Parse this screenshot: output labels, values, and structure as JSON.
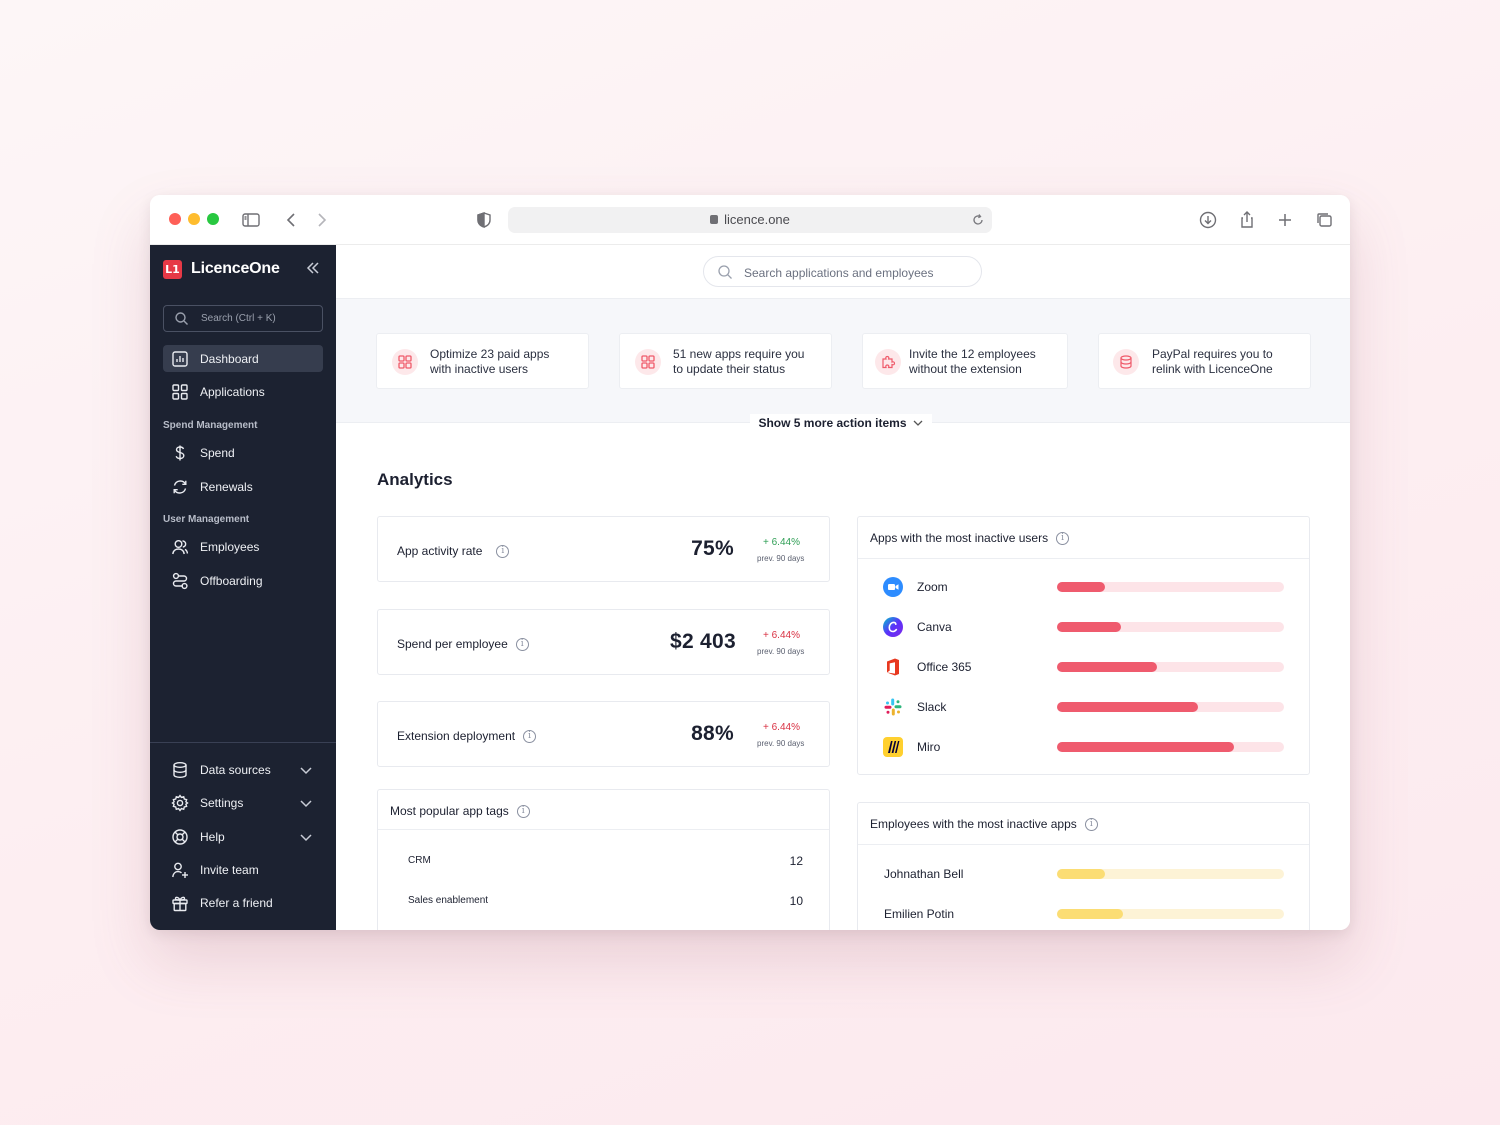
{
  "browser": {
    "url": "licence.one"
  },
  "sidebar": {
    "brand": "LicenceOne",
    "logo_text": "L1",
    "search_placeholder": "Search (Ctrl + K)",
    "items": [
      {
        "label": "Dashboard",
        "icon": "dashboard-icon",
        "active": true
      },
      {
        "label": "Applications",
        "icon": "grid-icon"
      }
    ],
    "spend_section": "Spend Management",
    "spend_items": [
      {
        "label": "Spend",
        "icon": "dollar-icon"
      },
      {
        "label": "Renewals",
        "icon": "refresh-icon"
      }
    ],
    "user_section": "User Management",
    "user_items": [
      {
        "label": "Employees",
        "icon": "users-icon"
      },
      {
        "label": "Offboarding",
        "icon": "offboarding-icon"
      }
    ],
    "bottom_items": [
      {
        "label": "Data sources",
        "icon": "database-icon",
        "expandable": true
      },
      {
        "label": "Settings",
        "icon": "gear-icon",
        "expandable": true
      },
      {
        "label": "Help",
        "icon": "lifebuoy-icon",
        "expandable": true
      },
      {
        "label": "Invite team",
        "icon": "user-plus-icon"
      },
      {
        "label": "Refer a friend",
        "icon": "gift-icon"
      }
    ]
  },
  "topbar": {
    "search_placeholder": "Search applications and employees"
  },
  "action_items": [
    {
      "line1": "Optimize 23 paid apps",
      "line2": "with inactive users",
      "icon": "grid-icon"
    },
    {
      "line1": "51 new apps require you",
      "line2": "to update their status",
      "icon": "grid-icon"
    },
    {
      "line1": "Invite the 12 employees",
      "line2": "without the extension",
      "icon": "puzzle-icon"
    },
    {
      "line1": "PayPal requires you to",
      "line2": "relink with LicenceOne",
      "icon": "database-icon"
    }
  ],
  "show_more": "Show 5 more action items",
  "analytics": {
    "title": "Analytics",
    "metrics": [
      {
        "label": "App activity rate",
        "value": "75%",
        "delta": "+ 6.44%",
        "delta_tone": "positive",
        "prev": "prev. 90 days"
      },
      {
        "label": "Spend per employee",
        "value": "$2 403",
        "delta": "+ 6.44%",
        "delta_tone": "negative",
        "prev": "prev. 90 days"
      },
      {
        "label": "Extension deployment",
        "value": "88%",
        "delta": "+ 6.44%",
        "delta_tone": "negative",
        "prev": "prev. 90 days"
      }
    ],
    "tags": {
      "title": "Most popular app tags",
      "rows": [
        {
          "tag": "CRM",
          "count": "12"
        },
        {
          "tag": "Sales enablement",
          "count": "10"
        }
      ]
    },
    "inactive_apps": {
      "title": "Apps with the most inactive users",
      "rows": [
        {
          "name": "Zoom",
          "level": 0.21,
          "icon": "zoom-icon"
        },
        {
          "name": "Canva",
          "level": 0.28,
          "icon": "canva-icon"
        },
        {
          "name": "Office 365",
          "level": 0.44,
          "icon": "office-icon"
        },
        {
          "name": "Slack",
          "level": 0.62,
          "icon": "slack-icon"
        },
        {
          "name": "Miro",
          "level": 0.78,
          "icon": "miro-icon"
        }
      ]
    },
    "inactive_employees": {
      "title": "Employees with the most inactive apps",
      "rows": [
        {
          "name": "Johnathan Bell",
          "level": 0.21
        },
        {
          "name": "Emilien Potin",
          "level": 0.29
        }
      ]
    }
  },
  "colors": {
    "sidebar_bg": "#1c2231",
    "accent_red": "#e63946",
    "bar_red": "#ef5b6e",
    "bar_yellow": "#fbdd74",
    "delta_green": "#2f9e55",
    "delta_red": "#d93143"
  }
}
